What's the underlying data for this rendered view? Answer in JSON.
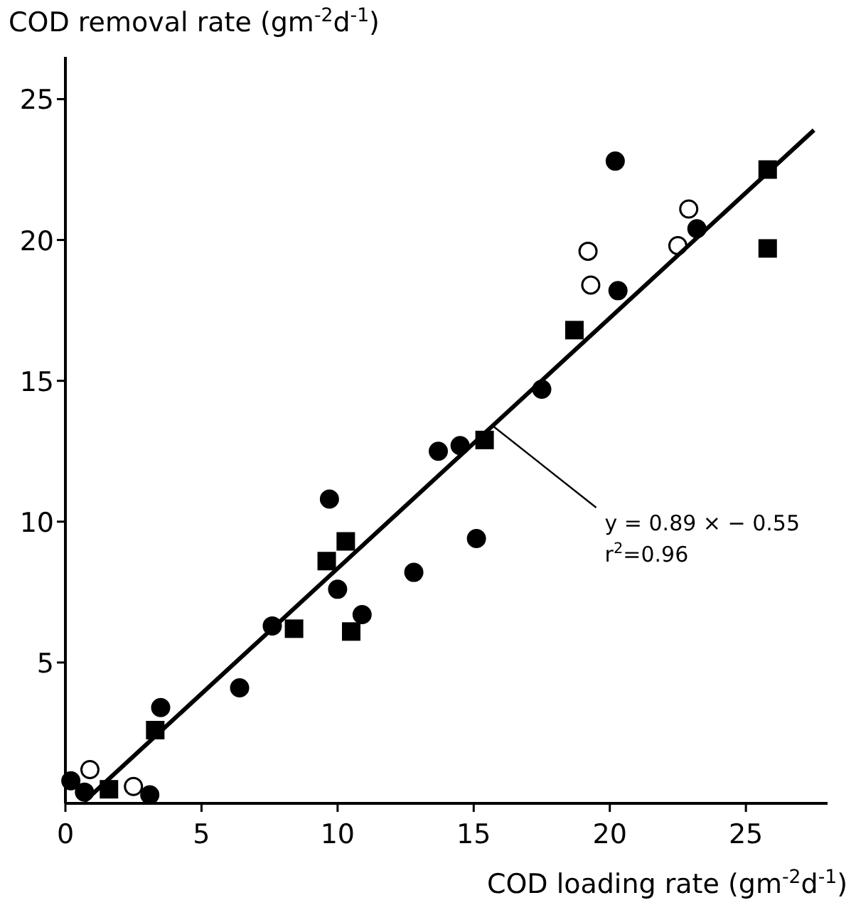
{
  "chart_data": {
    "type": "scatter",
    "xlabel": "COD loading rate (gm$^{-2}$d$^{-1}$)",
    "ylabel": "COD removal rate (gm$^{-2}$d$^{-1}$)",
    "xlim": [
      0,
      28
    ],
    "ylim": [
      0,
      26.5
    ],
    "xticks": [
      0,
      5,
      10,
      15,
      20,
      25
    ],
    "yticks": [
      5,
      10,
      15,
      20,
      25
    ],
    "grid": false,
    "series": [
      {
        "marker": "circle",
        "color": "#000000",
        "x": [
          0.2,
          0.7,
          3.1,
          3.5,
          6.4,
          7.6,
          9.7,
          10.0,
          10.9,
          12.8,
          13.7,
          14.5,
          15.1,
          17.5,
          20.2,
          20.3,
          23.2
        ],
        "values": [
          0.8,
          0.4,
          0.3,
          3.4,
          4.1,
          6.3,
          10.8,
          7.6,
          6.7,
          8.2,
          12.5,
          12.7,
          9.4,
          14.7,
          22.8,
          18.2,
          20.4
        ]
      },
      {
        "marker": "square",
        "color": "#000000",
        "x": [
          1.6,
          3.3,
          8.4,
          9.6,
          10.3,
          10.5,
          15.4,
          18.7,
          25.8,
          25.8
        ],
        "values": [
          0.5,
          2.6,
          6.2,
          8.6,
          9.3,
          6.1,
          12.9,
          16.8,
          22.5,
          19.7
        ]
      },
      {
        "marker": "circle",
        "color": "#ffffff",
        "x": [
          0.9,
          2.5,
          19.2,
          19.3,
          22.5,
          22.9
        ],
        "values": [
          1.2,
          0.6,
          19.6,
          18.4,
          19.8,
          21.1
        ]
      },
      {
        "type": "line",
        "marker": "none",
        "line_style": "solid",
        "color": "#000000",
        "x": [
          0.7,
          27.5
        ],
        "values": [
          0.07,
          23.9
        ]
      }
    ],
    "annotations": [
      {
        "text": "y = 0.89 × − 0.55",
        "x": 15.7,
        "y": 13.4
      },
      "r$^{2}$=0.96"
    ]
  }
}
